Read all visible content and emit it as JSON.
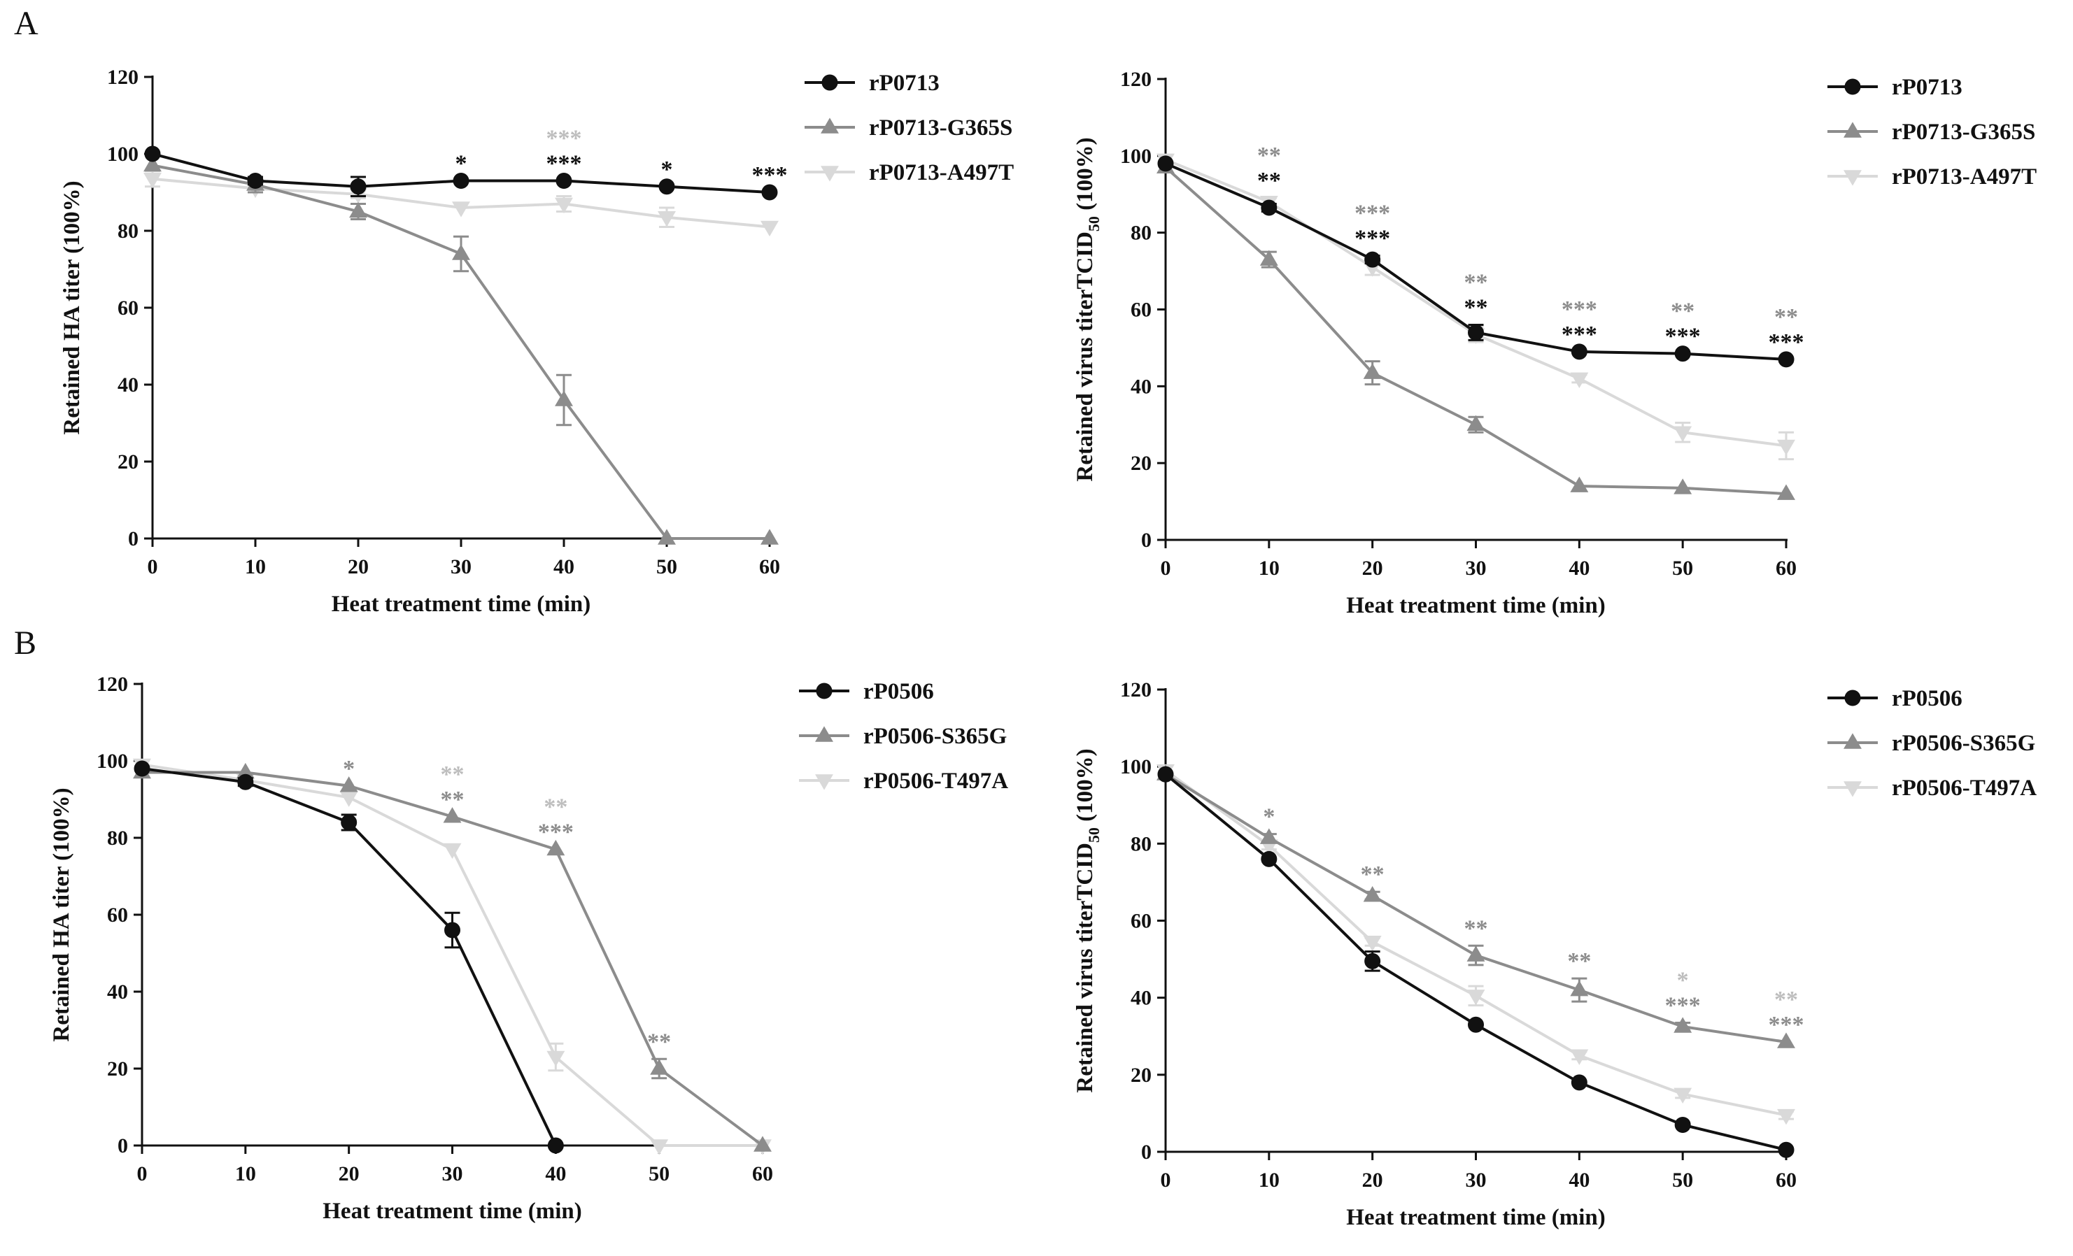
{
  "panel_labels": [
    "A",
    "B"
  ],
  "colors": {
    "s0": "#111111",
    "s1": "#8c8c8c",
    "s2": "#d9d9d9"
  },
  "chart_data": [
    {
      "type": "line",
      "title": "",
      "xlabel": "Heat treatment time (min)",
      "ylabel": "Retained HA titer (100%)",
      "ylabel_sub": "",
      "ylim": [
        0,
        120
      ],
      "yticks": [
        0,
        20,
        40,
        60,
        80,
        100,
        120
      ],
      "xlim": [
        0,
        60
      ],
      "xticks": [
        0,
        10,
        20,
        30,
        40,
        50,
        60
      ],
      "grid": false,
      "legend": "right",
      "x": [
        0,
        10,
        20,
        30,
        40,
        50,
        60
      ],
      "series": [
        {
          "name": "rP0713",
          "marker": "circle",
          "color": "#111111",
          "values": [
            100,
            93,
            91.5,
            93,
            93,
            91.5,
            90
          ],
          "errors": [
            0,
            1,
            2.5,
            0,
            0,
            0,
            0
          ]
        },
        {
          "name": "rP0713-G365S",
          "marker": "triangle-up",
          "color": "#8c8c8c",
          "values": [
            97,
            92,
            85,
            74,
            36,
            0,
            0
          ],
          "errors": [
            0,
            2,
            2,
            4.5,
            6.5,
            0,
            0
          ]
        },
        {
          "name": "rP0713-A497T",
          "marker": "triangle-down",
          "color": "#d9d9d9",
          "values": [
            93.5,
            91,
            89.5,
            86,
            87,
            83.5,
            81
          ],
          "errors": [
            2,
            1,
            1,
            0,
            2,
            2.5,
            0
          ]
        }
      ],
      "annotations": [
        {
          "x": 30,
          "text": "*",
          "series": 0
        },
        {
          "x": 40,
          "text": "***",
          "series": 0
        },
        {
          "x": 40,
          "text": "***",
          "series": 2
        },
        {
          "x": 50,
          "text": "*",
          "series": 0
        },
        {
          "x": 60,
          "text": "***",
          "series": 0
        }
      ]
    },
    {
      "type": "line",
      "title": "",
      "xlabel": "Heat treatment time (min)",
      "ylabel": "Retained virus titerTCID",
      "ylabel_sub": "50",
      "ylabel_tail": " (100%)",
      "ylim": [
        0,
        120
      ],
      "yticks": [
        0,
        20,
        40,
        60,
        80,
        100,
        120
      ],
      "xlim": [
        0,
        60
      ],
      "xticks": [
        0,
        10,
        20,
        30,
        40,
        50,
        60
      ],
      "grid": false,
      "legend": "right",
      "x": [
        0,
        10,
        20,
        30,
        40,
        50,
        60
      ],
      "series": [
        {
          "name": "rP0713",
          "marker": "circle",
          "color": "#111111",
          "values": [
            98,
            86.5,
            73,
            54,
            49,
            48.5,
            47
          ],
          "errors": [
            0,
            1,
            1,
            2,
            0,
            0,
            0
          ]
        },
        {
          "name": "rP0713-G365S",
          "marker": "triangle-up",
          "color": "#8c8c8c",
          "values": [
            97,
            73,
            43.5,
            30,
            14,
            13.5,
            12
          ],
          "errors": [
            0,
            2,
            3,
            2,
            0,
            0,
            0
          ]
        },
        {
          "name": "rP0713-A497T",
          "marker": "triangle-down",
          "color": "#d9d9d9",
          "values": [
            99,
            88,
            71,
            53.5,
            42,
            28,
            24.5
          ],
          "errors": [
            0,
            1,
            2,
            2,
            1,
            2.5,
            3.5
          ]
        }
      ],
      "annotations": [
        {
          "x": 10,
          "text": "**",
          "series": 0
        },
        {
          "x": 10,
          "text": "**",
          "series": 1
        },
        {
          "x": 20,
          "text": "***",
          "series": 0
        },
        {
          "x": 20,
          "text": "***",
          "series": 1
        },
        {
          "x": 30,
          "text": "**",
          "series": 0
        },
        {
          "x": 30,
          "text": "**",
          "series": 1
        },
        {
          "x": 40,
          "text": "***",
          "series": 0
        },
        {
          "x": 40,
          "text": "***",
          "series": 1
        },
        {
          "x": 50,
          "text": "***",
          "series": 0
        },
        {
          "x": 50,
          "text": "**",
          "series": 1
        },
        {
          "x": 60,
          "text": "***",
          "series": 0
        },
        {
          "x": 60,
          "text": "**",
          "series": 1
        }
      ]
    },
    {
      "type": "line",
      "title": "",
      "xlabel": "Heat treatment time (min)",
      "ylabel": "Retained HA titer (100%)",
      "ylabel_sub": "",
      "ylim": [
        0,
        120
      ],
      "yticks": [
        0,
        20,
        40,
        60,
        80,
        100,
        120
      ],
      "xlim": [
        0,
        60
      ],
      "xticks": [
        0,
        10,
        20,
        30,
        40,
        50,
        60
      ],
      "grid": false,
      "legend": "right",
      "x": [
        0,
        10,
        20,
        30,
        40,
        50,
        60
      ],
      "series": [
        {
          "name": "rP0506",
          "marker": "circle",
          "color": "#111111",
          "values": [
            98,
            94.5,
            84,
            56,
            0,
            null,
            null
          ],
          "errors": [
            0,
            1,
            2,
            4.5,
            0,
            0,
            0
          ]
        },
        {
          "name": "rP0506-S365G",
          "marker": "triangle-up",
          "color": "#8c8c8c",
          "values": [
            97,
            97,
            93.5,
            85.5,
            77,
            20,
            0
          ],
          "errors": [
            0,
            0,
            0,
            0,
            0,
            2.5,
            0
          ]
        },
        {
          "name": "rP0506-T497A",
          "marker": "triangle-down",
          "color": "#d9d9d9",
          "values": [
            99,
            95,
            90.5,
            77,
            23,
            0,
            0
          ],
          "errors": [
            0,
            0,
            0,
            0,
            3.5,
            0,
            0
          ]
        }
      ],
      "annotations": [
        {
          "x": 20,
          "text": "*",
          "series": 1
        },
        {
          "x": 30,
          "text": "**",
          "series": 1
        },
        {
          "x": 30,
          "text": "**",
          "series": 2
        },
        {
          "x": 40,
          "text": "***",
          "series": 1
        },
        {
          "x": 40,
          "text": "**",
          "series": 2
        },
        {
          "x": 50,
          "text": "**",
          "series": 1
        }
      ]
    },
    {
      "type": "line",
      "title": "",
      "xlabel": "Heat treatment time (min)",
      "ylabel": "Retained virus titerTCID",
      "ylabel_sub": "50",
      "ylabel_tail": " (100%)",
      "ylim": [
        0,
        120
      ],
      "yticks": [
        0,
        20,
        40,
        60,
        80,
        100,
        120
      ],
      "xlim": [
        0,
        60
      ],
      "xticks": [
        0,
        10,
        20,
        30,
        40,
        50,
        60
      ],
      "grid": false,
      "legend": "right",
      "x": [
        0,
        10,
        20,
        30,
        40,
        50,
        60
      ],
      "series": [
        {
          "name": "rP0506",
          "marker": "circle",
          "color": "#111111",
          "values": [
            98,
            76,
            49.5,
            33,
            18,
            7,
            0.5
          ],
          "errors": [
            0,
            0,
            2.5,
            0,
            0,
            0,
            0
          ]
        },
        {
          "name": "rP0506-S365G",
          "marker": "triangle-up",
          "color": "#8c8c8c",
          "values": [
            98,
            81.5,
            66.5,
            51,
            42,
            32.5,
            28.5
          ],
          "errors": [
            0,
            1,
            1,
            2.5,
            3,
            1,
            0
          ]
        },
        {
          "name": "rP0506-T497A",
          "marker": "triangle-down",
          "color": "#d9d9d9",
          "values": [
            99,
            79.5,
            54.5,
            40.5,
            25,
            15,
            9.5
          ],
          "errors": [
            0,
            1,
            1,
            2.5,
            1,
            1,
            1
          ]
        }
      ],
      "annotations": [
        {
          "x": 10,
          "text": "*",
          "series": 1
        },
        {
          "x": 20,
          "text": "**",
          "series": 1
        },
        {
          "x": 30,
          "text": "**",
          "series": 1
        },
        {
          "x": 40,
          "text": "**",
          "series": 1
        },
        {
          "x": 50,
          "text": "***",
          "series": 1
        },
        {
          "x": 50,
          "text": "*",
          "series": 2
        },
        {
          "x": 60,
          "text": "***",
          "series": 1
        },
        {
          "x": 60,
          "text": "**",
          "series": 2
        }
      ]
    }
  ]
}
